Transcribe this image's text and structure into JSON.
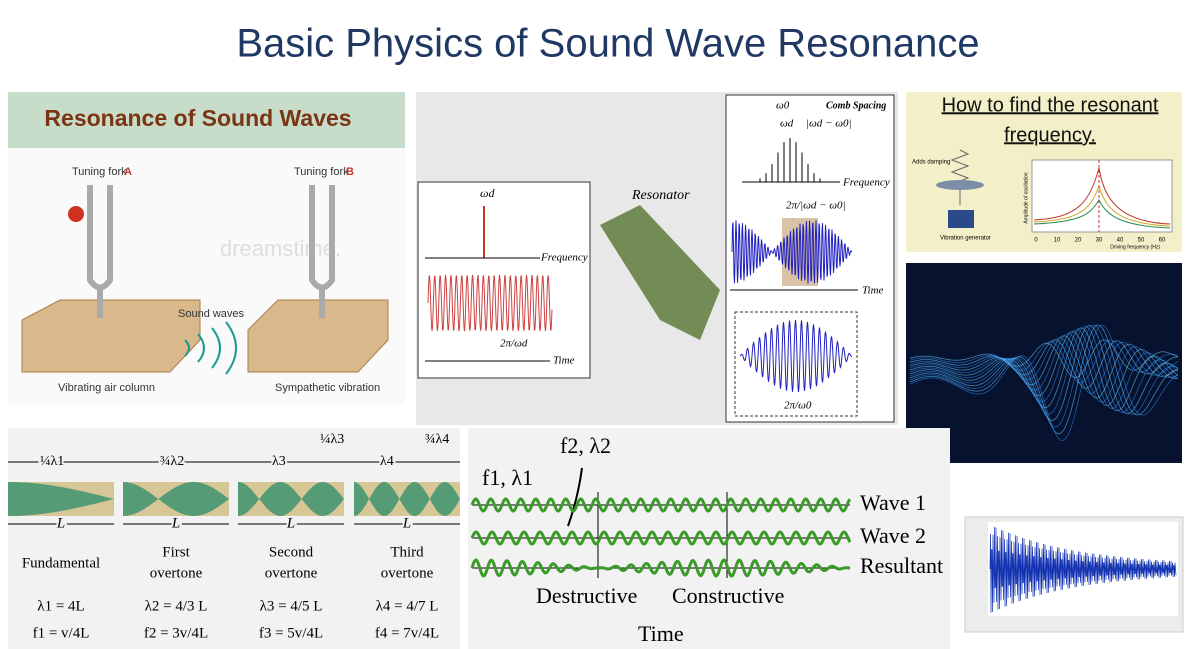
{
  "title": "Basic Physics of Sound Wave Resonance",
  "forks": {
    "heading": "Resonance of Sound Waves",
    "fork_a": "Tuning fork",
    "letter_a": "A",
    "fork_b": "Tuning fork",
    "letter_b": "B",
    "sound": "Sound waves",
    "left_caption": "Vibrating air column",
    "right_caption": "Sympathetic vibration",
    "watermark": "dreamstime."
  },
  "resonator": {
    "wd": "ωd",
    "freq1": "Frequency",
    "period1": "2π/ωd",
    "time1": "Time",
    "label": "Resonator",
    "w0": "ω0",
    "comb": "Comb Spacing",
    "wd2": "ωd",
    "diff": "|ωd − ω0|",
    "freq2": "Frequency",
    "period2": "2π/|ωd − ω0|",
    "time2": "Time",
    "period3": "2π/ω0"
  },
  "find": {
    "heading": [
      "How to find the resonant",
      "frequency."
    ],
    "damping": "Adds damping",
    "generator": "Vibration generator",
    "ylabel": "Amplitude of oscillation",
    "xlabel": "Driving frequency (Hz)",
    "xticks": [
      "0",
      "10",
      "20",
      "30",
      "40",
      "50",
      "60"
    ]
  },
  "tubes": {
    "top": [
      "¼λ1",
      "¾λ2",
      "λ3",
      "¼λ3",
      "λ4",
      "¾λ4"
    ],
    "length": [
      "L",
      "L",
      "L",
      "L"
    ],
    "names": [
      [
        "Fundamental"
      ],
      [
        "First",
        "overtone"
      ],
      [
        "Second",
        "overtone"
      ],
      [
        "Third",
        "overtone"
      ]
    ],
    "lambdas": [
      "λ1 = 4L",
      "λ2 = 4/3 L",
      "λ3 = 4/5 L",
      "λ4 = 4/7 L"
    ],
    "freqs": [
      "f1 = v/4L",
      "f2 = 3v/4L",
      "f3 = 5v/4L",
      "f4 = 7v/4L"
    ]
  },
  "interference": {
    "f2": "f2, λ2",
    "f1": "f1, λ1",
    "wave1": "Wave 1",
    "wave2": "Wave 2",
    "resultant": "Resultant",
    "destructive": "Destructive",
    "constructive": "Constructive",
    "time": "Time"
  }
}
